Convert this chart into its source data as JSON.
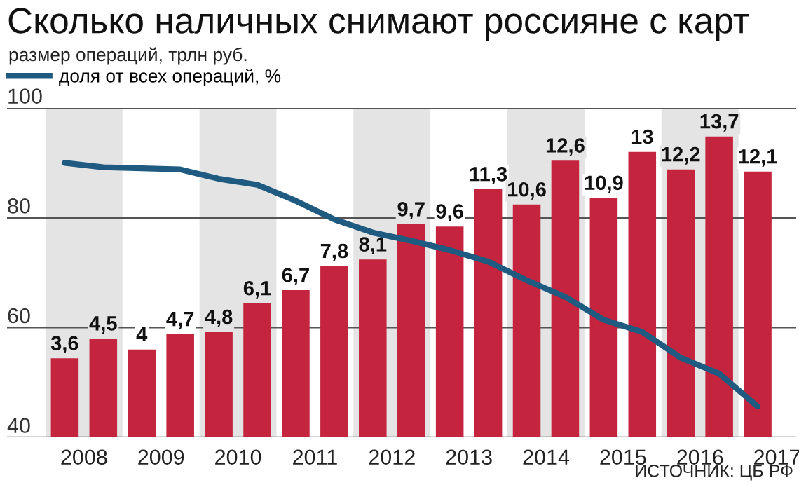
{
  "chart_data": {
    "type": "bar",
    "title": "Сколько наличных снимают россияне с карт",
    "subtitle": "размер операций, трлн руб.",
    "x": [
      2008.25,
      2008.75,
      2009.25,
      2009.75,
      2010.25,
      2010.75,
      2011.25,
      2011.75,
      2012.25,
      2012.75,
      2013.25,
      2013.75,
      2014.25,
      2014.75,
      2015.25,
      2015.75,
      2016.25,
      2016.75,
      2017.25
    ],
    "series": [
      {
        "axis": "y2",
        "color": "#c4243e",
        "values": [
          3.6,
          4.5,
          4,
          4.7,
          4.8,
          6.1,
          6.7,
          7.8,
          8.1,
          9.7,
          9.6,
          11.3,
          10.6,
          12.6,
          10.9,
          13,
          12.2,
          13.7,
          12.1
        ],
        "value_labels": [
          "3,6",
          "4,5",
          "4",
          "4,7",
          "4,8",
          "6,1",
          "6,7",
          "7,8",
          "8,1",
          "9,7",
          "9,6",
          "11,3",
          "10,6",
          "12,6",
          "10,9",
          "13",
          "12,2",
          "13,7",
          "12,1"
        ]
      },
      {
        "type": "line",
        "name": "доля от всех операций, %",
        "color": "#1f5a80",
        "values": [
          90.0,
          89.2,
          89.0,
          88.8,
          87.1,
          86.0,
          83.1,
          79.7,
          77.3,
          75.8,
          74.1,
          72.0,
          68.6,
          65.6,
          61.4,
          59.2,
          54.5,
          51.6,
          45.6
        ]
      }
    ],
    "xlim": [
      2007.5,
      2017.75
    ],
    "xticks": [
      {
        "value": 2008.5,
        "label": "2008"
      },
      {
        "value": 2009.5,
        "label": "2009"
      },
      {
        "value": 2010.5,
        "label": "2010"
      },
      {
        "value": 2011.5,
        "label": "2011"
      },
      {
        "value": 2012.5,
        "label": "2012"
      },
      {
        "value": 2013.5,
        "label": "2013"
      },
      {
        "value": 2014.5,
        "label": "2014"
      },
      {
        "value": 2015.5,
        "label": "2015"
      },
      {
        "value": 2016.5,
        "label": "2016"
      },
      {
        "value": 2017.5,
        "label": "2017"
      }
    ],
    "ylim": [
      40,
      100
    ],
    "yticks": [
      40,
      60,
      80,
      100
    ],
    "y2lim": [
      0,
      15
    ],
    "bands": [
      {
        "axis": "x",
        "from": 2008,
        "to": 2009,
        "color": "#e4e4e4"
      },
      {
        "axis": "x",
        "from": 2010,
        "to": 2011,
        "color": "#e4e4e4"
      },
      {
        "axis": "x",
        "from": 2012,
        "to": 2013,
        "color": "#e4e4e4"
      },
      {
        "axis": "x",
        "from": 2014,
        "to": 2015,
        "color": "#e4e4e4"
      },
      {
        "axis": "x",
        "from": 2016,
        "to": 2017,
        "color": "#e4e4e4"
      }
    ],
    "grid": "y",
    "legend": "top left",
    "marker": "none",
    "line_style": "solid",
    "annotations": [
      "ИСТОЧНИК: ЦБ РФ"
    ]
  }
}
